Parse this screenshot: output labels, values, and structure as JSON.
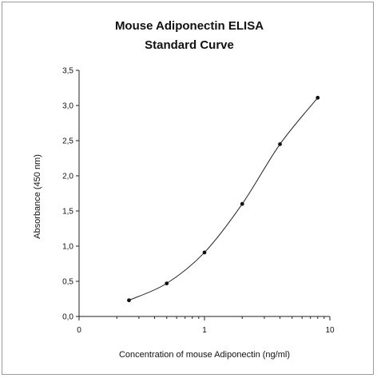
{
  "chart_data": {
    "type": "line",
    "title": "Mouse Adiponectin ELISA",
    "subtitle": "Standard Curve",
    "xlabel": "Concentration of mouse Adiponectin (ng/ml)",
    "ylabel": "Absorbance (450 nm)",
    "x_scale": "log",
    "xlim": [
      0.1,
      10
    ],
    "ylim": [
      0,
      3.5
    ],
    "x_ticks": [
      {
        "value": 0.1,
        "label": "0"
      },
      {
        "value": 1,
        "label": "1"
      },
      {
        "value": 10,
        "label": "10"
      }
    ],
    "y_ticks": [
      {
        "value": 0,
        "label": "0,0"
      },
      {
        "value": 0.5,
        "label": "0,5"
      },
      {
        "value": 1,
        "label": "1,0"
      },
      {
        "value": 1.5,
        "label": "1,5"
      },
      {
        "value": 2,
        "label": "2,0"
      },
      {
        "value": 2.5,
        "label": "2,5"
      },
      {
        "value": 3,
        "label": "3,0"
      },
      {
        "value": 3.5,
        "label": "3,5"
      }
    ],
    "grid": false,
    "series": [
      {
        "x": [
          0.25,
          0.5,
          1,
          2,
          4,
          8
        ],
        "y": [
          0.23,
          0.47,
          0.91,
          1.6,
          2.45,
          3.11
        ]
      }
    ]
  }
}
